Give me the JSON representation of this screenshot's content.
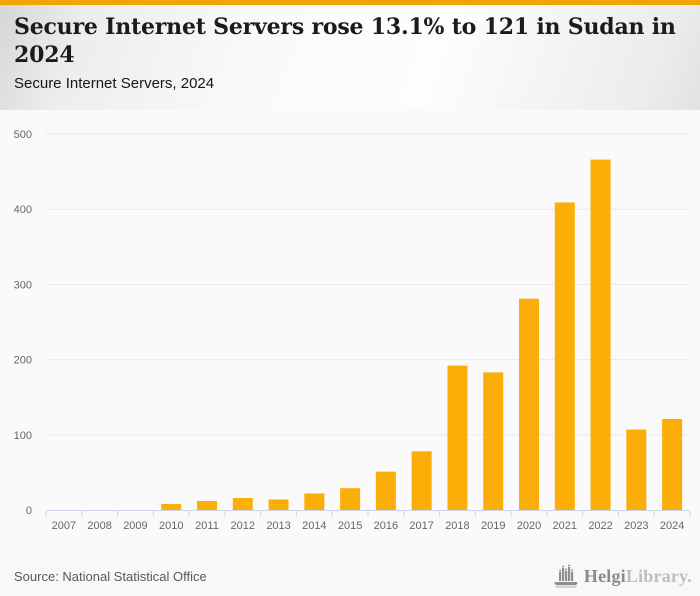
{
  "colors": {
    "accent_bar": "#efa602",
    "bar": "#fbae08",
    "grid": "#e7e7e7",
    "axis": "#ccd6eb",
    "tick_label": "#666666",
    "chart_bg": "#fafafa"
  },
  "header": {
    "title": "Secure Internet Servers rose 13.1% to 121 in Sudan in 2024",
    "subtitle": "Secure Internet Servers, 2024"
  },
  "chart_data": {
    "type": "bar",
    "title": "Secure Internet Servers rose 13.1% to 121 in Sudan in 2024",
    "subtitle": "Secure Internet Servers, 2024",
    "categories": [
      "2007",
      "2008",
      "2009",
      "2010",
      "2011",
      "2012",
      "2013",
      "2014",
      "2015",
      "2016",
      "2017",
      "2018",
      "2019",
      "2020",
      "2021",
      "2022",
      "2023",
      "2024"
    ],
    "values": [
      0,
      0,
      0,
      8,
      12,
      16,
      14,
      22,
      29,
      51,
      78,
      192,
      183,
      281,
      409,
      466,
      107,
      121
    ],
    "ylim": [
      0,
      500
    ],
    "yticks": [
      0,
      100,
      200,
      300,
      400,
      500
    ],
    "xlabel": "",
    "ylabel": "",
    "grid": true,
    "legend": false,
    "bar_color": "#fbae08"
  },
  "footer": {
    "source": "Source: National Statistical Office",
    "logo": {
      "icon": "bar-chart-logo-icon",
      "brand_bold": "Helgi",
      "brand_light": "Library",
      "suffix": "."
    }
  }
}
